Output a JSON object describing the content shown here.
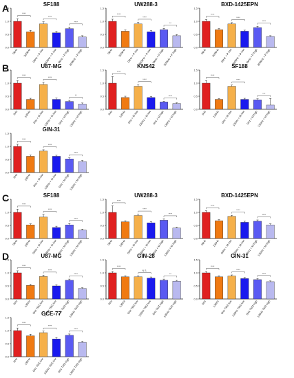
{
  "colors": {
    "red": "#e02020",
    "orange": "#f07a12",
    "lightorange": "#f5b04a",
    "blue": "#1a1aee",
    "midblue": "#5a5af2",
    "lightblue": "#b9b9ef",
    "axis": "#222222",
    "sig": "#555555"
  },
  "panel_labels": [
    "A",
    "B",
    "C",
    "D"
  ],
  "chart_data": [
    {
      "type": "bar",
      "panel": "A",
      "title": "SF188",
      "categories": [
        "0kHz",
        "300kHz",
        "0kHz + P-low",
        "300kHz + P-low",
        "0kHz + P-high",
        "300kHz + P-high"
      ],
      "values": [
        1.0,
        0.6,
        0.9,
        0.56,
        0.72,
        0.4
      ],
      "errors": [
        0.1,
        0.05,
        0.08,
        0.05,
        0.06,
        0.05
      ],
      "colors": [
        "red",
        "orange",
        "lightorange",
        "blue",
        "midblue",
        "lightblue"
      ],
      "yticks": [
        "0.0",
        "0.5",
        "1.0",
        "1.5"
      ],
      "ylim": [
        0,
        1.5
      ],
      "sig": [
        [
          "****",
          0,
          1
        ],
        [
          "****",
          2,
          3
        ],
        [
          "****",
          4,
          5
        ]
      ]
    },
    {
      "type": "bar",
      "panel": "A",
      "title": "UW288-3",
      "categories": [
        "0kHz",
        "300kHz",
        "0kHz + P-low",
        "300kHz + P-low",
        "0kHz + P-high",
        "300kHz + P-high"
      ],
      "values": [
        1.0,
        0.62,
        0.9,
        0.6,
        0.68,
        0.45
      ],
      "errors": [
        0.08,
        0.05,
        0.06,
        0.05,
        0.05,
        0.04
      ],
      "colors": [
        "red",
        "orange",
        "lightorange",
        "blue",
        "midblue",
        "lightblue"
      ],
      "yticks": [
        "0.0",
        "0.5",
        "1.0",
        "1.5"
      ],
      "ylim": [
        0,
        1.5
      ],
      "sig": [
        [
          "****",
          0,
          1
        ],
        [
          "****",
          2,
          3
        ],
        [
          "**",
          4,
          5
        ]
      ]
    },
    {
      "type": "bar",
      "panel": "A",
      "title": "BXD-1425EPN",
      "categories": [
        "0kHz",
        "300kHz",
        "0kHz + P-low",
        "300kHz + P-low",
        "0kHz + P-high",
        "300kHz + P-high"
      ],
      "values": [
        1.0,
        0.68,
        0.9,
        0.62,
        0.76,
        0.42
      ],
      "errors": [
        0.07,
        0.04,
        0.05,
        0.04,
        0.05,
        0.03
      ],
      "colors": [
        "red",
        "orange",
        "lightorange",
        "blue",
        "midblue",
        "lightblue"
      ],
      "yticks": [
        "0.0",
        "0.5",
        "1.0",
        "1.5"
      ],
      "ylim": [
        0,
        1.5
      ],
      "sig": [
        [
          "****",
          0,
          1
        ],
        [
          "****",
          2,
          3
        ],
        [
          "****",
          4,
          5
        ]
      ]
    },
    {
      "type": "bar",
      "panel": "B",
      "title": "U87-MG",
      "categories": [
        "0Hz",
        "130Hz",
        "0Hz + M-low",
        "130Hz + M-low",
        "0Hz + M-high",
        "130Hz + M-high"
      ],
      "values": [
        1.0,
        0.38,
        0.95,
        0.38,
        0.3,
        0.2
      ],
      "errors": [
        0.1,
        0.04,
        0.08,
        0.05,
        0.04,
        0.04
      ],
      "colors": [
        "red",
        "orange",
        "lightorange",
        "blue",
        "midblue",
        "lightblue"
      ],
      "yticks": [
        "0.0",
        "0.5",
        "1.0",
        "1.5"
      ],
      "ylim": [
        0,
        1.5
      ],
      "sig": [
        [
          "****",
          0,
          1
        ],
        [
          "****",
          2,
          3
        ],
        [
          "**",
          4,
          5
        ]
      ]
    },
    {
      "type": "bar",
      "panel": "B",
      "title": "KNS42",
      "categories": [
        "0Hz",
        "130Hz",
        "0Hz + M-low",
        "130Hz + M-low",
        "0Hz + M-high",
        "130Hz + M-high"
      ],
      "values": [
        1.0,
        0.45,
        0.88,
        0.45,
        0.28,
        0.22
      ],
      "errors": [
        0.25,
        0.05,
        0.06,
        0.04,
        0.03,
        0.03
      ],
      "colors": [
        "red",
        "orange",
        "lightorange",
        "blue",
        "midblue",
        "lightblue"
      ],
      "yticks": [
        "0.0",
        "0.5",
        "1.0",
        "1.5"
      ],
      "ylim": [
        0,
        1.5
      ],
      "sig": [
        [
          "****",
          0,
          1
        ],
        [
          "****",
          2,
          3
        ],
        [
          "****",
          4,
          5
        ]
      ]
    },
    {
      "type": "bar",
      "panel": "B",
      "title": "SF188",
      "categories": [
        "0Hz",
        "130Hz",
        "0Hz + M-low",
        "130Hz + M-low",
        "0Hz + M-high",
        "130Hz + M-high"
      ],
      "values": [
        1.0,
        0.38,
        0.88,
        0.38,
        0.36,
        0.16
      ],
      "errors": [
        0.1,
        0.03,
        0.05,
        0.04,
        0.04,
        0.25
      ],
      "colors": [
        "red",
        "orange",
        "lightorange",
        "blue",
        "midblue",
        "lightblue"
      ],
      "yticks": [
        "0.0",
        "0.5",
        "1.0",
        "1.5"
      ],
      "ylim": [
        0,
        1.5
      ],
      "sig": [
        [
          "****",
          0,
          1
        ],
        [
          "****",
          2,
          3
        ],
        [
          "***",
          4,
          5
        ]
      ]
    },
    {
      "type": "bar",
      "panel": "B",
      "title": "GIN-31",
      "categories": [
        "0Hz",
        "130Hz",
        "0Hz + M-low",
        "130Hz + M-low",
        "0Hz + M-high",
        "130Hz + M-high"
      ],
      "values": [
        1.0,
        0.62,
        0.82,
        0.62,
        0.52,
        0.42
      ],
      "errors": [
        0.08,
        0.05,
        0.05,
        0.04,
        0.04,
        0.04
      ],
      "colors": [
        "red",
        "orange",
        "lightorange",
        "blue",
        "midblue",
        "lightblue"
      ],
      "yticks": [
        "0.0",
        "0.5",
        "1.0",
        "1.5"
      ],
      "ylim": [
        0,
        1.5
      ],
      "sig": [
        [
          "****",
          0,
          1
        ],
        [
          "****",
          2,
          3
        ],
        [
          "****",
          4,
          5
        ]
      ]
    },
    {
      "type": "bar",
      "panel": "C",
      "title": "SF188",
      "categories": [
        "0kHz",
        "130Hz",
        "0kHz + M-low",
        "130Hz + M-low",
        "0kHz + M-high",
        "130Hz + M-high"
      ],
      "values": [
        1.0,
        0.52,
        0.82,
        0.42,
        0.52,
        0.32
      ],
      "errors": [
        0.12,
        0.04,
        0.1,
        0.05,
        0.05,
        0.04
      ],
      "colors": [
        "red",
        "orange",
        "lightorange",
        "blue",
        "midblue",
        "lightblue"
      ],
      "yticks": [
        "0.0",
        "0.5",
        "1.0",
        "1.5"
      ],
      "ylim": [
        0,
        1.5
      ],
      "sig": [
        [
          "****",
          0,
          1
        ],
        [
          "****",
          2,
          3
        ],
        [
          "****",
          4,
          5
        ]
      ]
    },
    {
      "type": "bar",
      "panel": "C",
      "title": "UW288-3",
      "categories": [
        "0kHz",
        "130Hz",
        "0kHz + M-low",
        "130Hz + M-low",
        "0kHz + M-high",
        "130Hz + M-high"
      ],
      "values": [
        1.0,
        0.64,
        0.88,
        0.6,
        0.7,
        0.4
      ],
      "errors": [
        0.25,
        0.04,
        0.05,
        0.04,
        0.05,
        0.03
      ],
      "colors": [
        "red",
        "orange",
        "lightorange",
        "blue",
        "midblue",
        "lightblue"
      ],
      "yticks": [
        "0.0",
        "0.5",
        "1.0",
        "1.5"
      ],
      "ylim": [
        0,
        1.5
      ],
      "sig": [
        [
          "****",
          0,
          1
        ],
        [
          "****",
          2,
          3
        ],
        [
          "****",
          4,
          5
        ]
      ]
    },
    {
      "type": "bar",
      "panel": "C",
      "title": "BXD-1425EPN",
      "categories": [
        "0kHz",
        "130Hz",
        "0kHz + M-low",
        "130Hz + M-low",
        "0kHz + M-high",
        "130Hz + M-high"
      ],
      "values": [
        1.0,
        0.68,
        0.85,
        0.62,
        0.66,
        0.52
      ],
      "errors": [
        0.06,
        0.04,
        0.04,
        0.04,
        0.05,
        0.04
      ],
      "colors": [
        "red",
        "orange",
        "lightorange",
        "blue",
        "midblue",
        "lightblue"
      ],
      "yticks": [
        "0.0",
        "0.5",
        "1.0",
        "1.5"
      ],
      "ylim": [
        0,
        1.5
      ],
      "sig": [
        [
          "****",
          0,
          1
        ],
        [
          "****",
          2,
          3
        ],
        [
          "****",
          4,
          5
        ]
      ]
    },
    {
      "type": "bar",
      "panel": "D",
      "title": "U87-MG",
      "categories": [
        "0Hz",
        "130Hz",
        "0Hz TMZ-low",
        "130Hz TMZ-low",
        "0Hz TMZ-high",
        "130Hz TMZ-high"
      ],
      "values": [
        1.0,
        0.52,
        0.86,
        0.5,
        0.72,
        0.4
      ],
      "errors": [
        0.08,
        0.04,
        0.05,
        0.04,
        0.04,
        0.03
      ],
      "colors": [
        "red",
        "orange",
        "lightorange",
        "blue",
        "midblue",
        "lightblue"
      ],
      "yticks": [
        "0.0",
        "0.5",
        "1.0",
        "1.5"
      ],
      "ylim": [
        0,
        1.5
      ],
      "sig": [
        [
          "****",
          0,
          1
        ],
        [
          "****",
          2,
          3
        ],
        [
          "****",
          4,
          5
        ]
      ]
    },
    {
      "type": "bar",
      "panel": "D",
      "title": "GIN-28",
      "categories": [
        "0Hz",
        "130Hz",
        "0Hz TMZ-low",
        "130Hz TMZ-low",
        "0Hz TMZ-high",
        "130Hz TMZ-high"
      ],
      "values": [
        1.0,
        0.85,
        0.85,
        0.8,
        0.72,
        0.68
      ],
      "errors": [
        0.05,
        0.04,
        0.04,
        0.04,
        0.04,
        0.03
      ],
      "colors": [
        "red",
        "orange",
        "lightorange",
        "blue",
        "midblue",
        "lightblue"
      ],
      "yticks": [
        "0.0",
        "0.5",
        "1.0",
        "1.5"
      ],
      "ylim": [
        0,
        1.5
      ],
      "sig": [
        [
          "****",
          0,
          1
        ],
        [
          "N.S.",
          2,
          3
        ],
        [
          "**",
          4,
          5
        ]
      ]
    },
    {
      "type": "bar",
      "panel": "D",
      "title": "GIN-31",
      "categories": [
        "0Hz",
        "130Hz",
        "0Hz TMZ-low",
        "130Hz TMZ-low",
        "0Hz TMZ-high",
        "130Hz TMZ-high"
      ],
      "values": [
        1.0,
        0.85,
        0.88,
        0.78,
        0.74,
        0.66
      ],
      "errors": [
        0.05,
        0.04,
        0.04,
        0.04,
        0.04,
        0.03
      ],
      "colors": [
        "red",
        "orange",
        "lightorange",
        "blue",
        "midblue",
        "lightblue"
      ],
      "yticks": [
        "0.0",
        "0.5",
        "1.0",
        "1.5"
      ],
      "ylim": [
        0,
        1.5
      ],
      "sig": [
        [
          "****",
          0,
          1
        ],
        [
          "****",
          2,
          3
        ],
        [
          "****",
          4,
          5
        ]
      ]
    },
    {
      "type": "bar",
      "panel": "D",
      "title": "GCE-77",
      "categories": [
        "0Hz",
        "130Hz",
        "0Hz TMZ-low",
        "130Hz TMZ-low",
        "0Hz TMZ-high",
        "130Hz TMZ-high"
      ],
      "values": [
        1.0,
        0.8,
        0.92,
        0.68,
        0.82,
        0.55
      ],
      "errors": [
        0.1,
        0.06,
        0.06,
        0.05,
        0.05,
        0.04
      ],
      "colors": [
        "red",
        "orange",
        "lightorange",
        "blue",
        "midblue",
        "lightblue"
      ],
      "yticks": [
        "0.0",
        "0.5",
        "1.0",
        "1.5"
      ],
      "ylim": [
        0,
        1.5
      ],
      "sig": [
        [
          "****",
          0,
          1
        ],
        [
          "****",
          2,
          3
        ],
        [
          "****",
          4,
          5
        ]
      ]
    }
  ]
}
